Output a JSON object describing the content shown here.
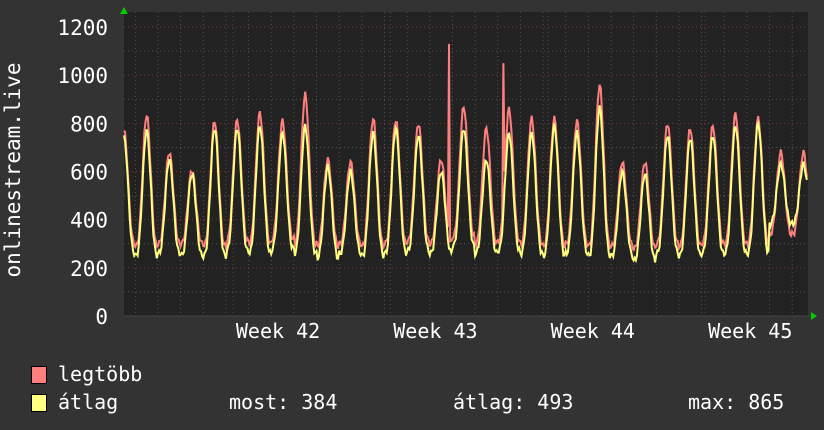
{
  "chart_data": {
    "type": "line",
    "ylabel": "onlinestream.live",
    "ylim": [
      0,
      1200
    ],
    "yticks": [
      "0",
      "200",
      "400",
      "600",
      "800",
      "1000",
      "1200"
    ],
    "ytick_values": [
      0,
      200,
      400,
      600,
      800,
      1000,
      1200
    ],
    "xlim_days": [
      0,
      30.2
    ],
    "xticks": [
      {
        "label": "Week 42",
        "day": 6.8
      },
      {
        "label": "Week 43",
        "day": 13.75
      },
      {
        "label": "Week 44",
        "day": 20.7
      },
      {
        "label": "Week 45",
        "day": 27.65
      }
    ],
    "grid": true,
    "series": [
      {
        "name": "legtöbb",
        "color": "#ff7f7f",
        "daily_peaks": [
          770,
          835,
          680,
          605,
          810,
          815,
          845,
          810,
          920,
          650,
          640,
          820,
          815,
          800,
          650,
          870,
          780,
          860,
          820,
          820,
          810,
          960,
          640,
          640,
          800,
          780,
          790,
          840,
          820,
          680
        ],
        "daily_lows": [
          300,
          290,
          300,
          300,
          290,
          310,
          300,
          320,
          300,
          290,
          300,
          290,
          300,
          310,
          300,
          330,
          300,
          310,
          300,
          290,
          300,
          290,
          290,
          280,
          300,
          290,
          300,
          300,
          300,
          340
        ],
        "spikes": [
          {
            "day": 14.35,
            "value": 1130
          },
          {
            "day": 16.75,
            "value": 1050
          }
        ]
      },
      {
        "name": "átlag",
        "color": "#ffff80",
        "daily_peaks": [
          740,
          770,
          650,
          590,
          780,
          780,
          790,
          760,
          790,
          620,
          600,
          760,
          780,
          750,
          600,
          780,
          650,
          760,
          760,
          790,
          760,
          865,
          600,
          590,
          750,
          740,
          750,
          790,
          800,
          630
        ],
        "daily_lows": [
          260,
          250,
          260,
          250,
          250,
          270,
          260,
          280,
          260,
          240,
          260,
          250,
          260,
          270,
          260,
          290,
          260,
          270,
          260,
          250,
          260,
          250,
          250,
          230,
          260,
          250,
          260,
          260,
          260,
          384
        ],
        "spikes": []
      }
    ]
  },
  "legend": {
    "items": [
      {
        "label": "legtöbb",
        "color": "#ff7f7f"
      },
      {
        "label": "átlag",
        "color": "#ffff80"
      }
    ],
    "stats": {
      "most": "most: 384",
      "atlag": "átlag: 493",
      "max": "max: 865"
    }
  }
}
